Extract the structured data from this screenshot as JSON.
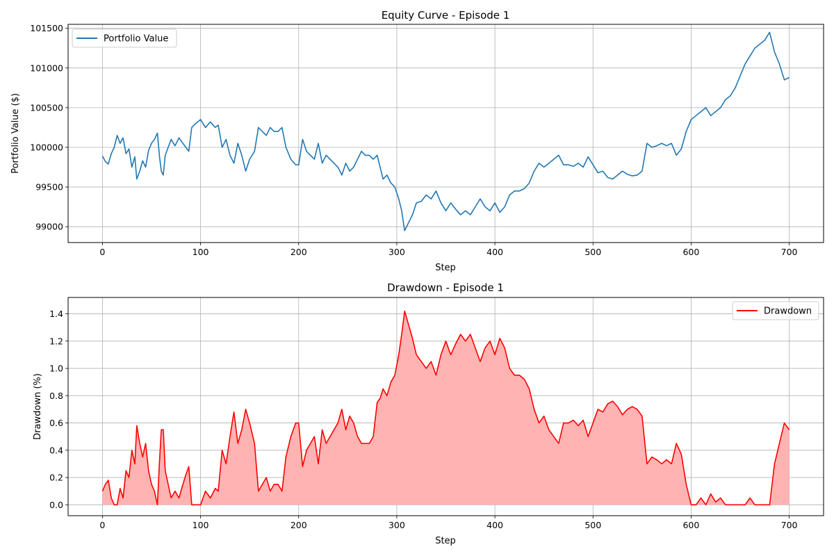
{
  "chart_data": [
    {
      "type": "line",
      "title": "Equity Curve - Episode 1",
      "xlabel": "Step",
      "ylabel": "Portfolio Value ($)",
      "xlim": [
        -35,
        735
      ],
      "ylim": [
        98800,
        101550
      ],
      "x_ticks": [
        0,
        100,
        200,
        300,
        400,
        500,
        600,
        700
      ],
      "y_ticks": [
        99000,
        99500,
        100000,
        100500,
        101000,
        101500
      ],
      "grid": true,
      "legend": "upper left",
      "series": [
        {
          "name": "Portfolio Value",
          "color": "#1f77b4",
          "x": [
            0,
            3,
            6,
            9,
            12,
            15,
            18,
            21,
            24,
            27,
            30,
            33,
            35,
            38,
            41,
            44,
            47,
            50,
            53,
            56,
            58,
            60,
            62,
            64,
            67,
            70,
            74,
            78,
            82,
            85,
            88,
            91,
            95,
            100,
            105,
            110,
            115,
            118,
            122,
            126,
            130,
            134,
            138,
            142,
            146,
            150,
            155,
            159,
            163,
            167,
            171,
            175,
            179,
            183,
            187,
            192,
            197,
            200,
            204,
            208,
            212,
            216,
            220,
            224,
            228,
            232,
            236,
            240,
            244,
            248,
            252,
            256,
            260,
            264,
            268,
            272,
            276,
            280,
            283,
            286,
            290,
            294,
            298,
            302,
            305,
            308,
            312,
            316,
            320,
            325,
            330,
            335,
            340,
            345,
            350,
            355,
            360,
            365,
            370,
            375,
            380,
            385,
            390,
            395,
            400,
            405,
            410,
            415,
            420,
            425,
            430,
            435,
            440,
            445,
            450,
            455,
            460,
            465,
            470,
            475,
            480,
            485,
            490,
            495,
            500,
            505,
            510,
            515,
            520,
            525,
            530,
            535,
            540,
            545,
            550,
            555,
            560,
            565,
            570,
            575,
            580,
            585,
            590,
            595,
            600,
            605,
            610,
            615,
            620,
            625,
            630,
            635,
            640,
            645,
            650,
            655,
            660,
            665,
            670,
            675,
            680,
            685,
            690,
            695,
            700
          ],
          "values": [
            99890,
            99820,
            99790,
            99920,
            100000,
            100150,
            100050,
            100120,
            99920,
            99980,
            99750,
            99880,
            99600,
            99700,
            99830,
            99750,
            99960,
            100050,
            100100,
            100180,
            99900,
            99700,
            99650,
            99900,
            100000,
            100100,
            100020,
            100120,
            100050,
            100000,
            99950,
            100250,
            100300,
            100350,
            100250,
            100320,
            100250,
            100280,
            100000,
            100100,
            99900,
            99800,
            100050,
            99900,
            99700,
            99850,
            99950,
            100250,
            100200,
            100150,
            100250,
            100200,
            100200,
            100250,
            100000,
            99850,
            99780,
            99780,
            100100,
            99950,
            99900,
            99850,
            100050,
            99800,
            99900,
            99850,
            99800,
            99750,
            99650,
            99800,
            99700,
            99750,
            99850,
            99950,
            99900,
            99900,
            99850,
            99900,
            99750,
            99600,
            99650,
            99550,
            99500,
            99350,
            99200,
            98950,
            99050,
            99150,
            99300,
            99320,
            99400,
            99350,
            99450,
            99300,
            99200,
            99300,
            99220,
            99150,
            99200,
            99150,
            99250,
            99350,
            99250,
            99200,
            99300,
            99180,
            99250,
            99400,
            99450,
            99450,
            99480,
            99550,
            99700,
            99800,
            99750,
            99800,
            99850,
            99900,
            99780,
            99780,
            99760,
            99800,
            99750,
            99880,
            99780,
            99680,
            99700,
            99620,
            99600,
            99650,
            99700,
            99660,
            99640,
            99650,
            99700,
            100050,
            100000,
            100020,
            100050,
            100020,
            100050,
            99900,
            99980,
            100200,
            100350,
            100400,
            100450,
            100500,
            100400,
            100450,
            100500,
            100600,
            100650,
            100750,
            100900,
            101050,
            101150,
            101250,
            101300,
            101350,
            101450,
            101200,
            101050,
            100850,
            100880
          ]
        }
      ]
    },
    {
      "type": "area",
      "title": "Drawdown - Episode 1",
      "xlabel": "Step",
      "ylabel": "Drawdown (%)",
      "xlim": [
        -35,
        735
      ],
      "ylim": [
        -0.08,
        1.52
      ],
      "x_ticks": [
        0,
        100,
        200,
        300,
        400,
        500,
        600,
        700
      ],
      "y_ticks": [
        0.0,
        0.2,
        0.4,
        0.6,
        0.8,
        1.0,
        1.2,
        1.4
      ],
      "grid": true,
      "legend": "upper right",
      "series": [
        {
          "name": "Drawdown",
          "color": "#ff0000",
          "fill_color": "#ffb3b3",
          "x": [
            0,
            3,
            6,
            9,
            12,
            15,
            18,
            21,
            24,
            27,
            30,
            33,
            35,
            38,
            41,
            44,
            47,
            50,
            53,
            56,
            58,
            60,
            62,
            64,
            67,
            70,
            74,
            78,
            82,
            85,
            88,
            91,
            95,
            100,
            105,
            110,
            115,
            118,
            122,
            126,
            130,
            134,
            138,
            142,
            146,
            150,
            155,
            159,
            163,
            167,
            171,
            175,
            179,
            183,
            187,
            192,
            197,
            200,
            204,
            208,
            212,
            216,
            220,
            224,
            228,
            232,
            236,
            240,
            244,
            248,
            252,
            256,
            260,
            264,
            268,
            272,
            276,
            280,
            283,
            286,
            290,
            294,
            298,
            302,
            305,
            308,
            312,
            316,
            320,
            325,
            330,
            335,
            340,
            345,
            350,
            355,
            360,
            365,
            370,
            375,
            380,
            385,
            390,
            395,
            400,
            405,
            410,
            415,
            420,
            425,
            430,
            435,
            440,
            445,
            450,
            455,
            460,
            465,
            470,
            475,
            480,
            485,
            490,
            495,
            500,
            505,
            510,
            515,
            520,
            525,
            530,
            535,
            540,
            545,
            550,
            555,
            560,
            565,
            570,
            575,
            580,
            585,
            590,
            595,
            600,
            605,
            610,
            615,
            620,
            625,
            630,
            635,
            640,
            645,
            650,
            655,
            660,
            665,
            670,
            675,
            680,
            685,
            690,
            695,
            700
          ],
          "values": [
            0.1,
            0.15,
            0.18,
            0.05,
            0.0,
            0.0,
            0.12,
            0.05,
            0.25,
            0.2,
            0.4,
            0.3,
            0.58,
            0.45,
            0.35,
            0.45,
            0.25,
            0.15,
            0.1,
            0.0,
            0.3,
            0.55,
            0.55,
            0.25,
            0.15,
            0.05,
            0.1,
            0.05,
            0.15,
            0.22,
            0.28,
            0.0,
            0.0,
            0.0,
            0.1,
            0.05,
            0.12,
            0.1,
            0.4,
            0.3,
            0.5,
            0.68,
            0.45,
            0.55,
            0.7,
            0.6,
            0.45,
            0.1,
            0.15,
            0.2,
            0.1,
            0.15,
            0.15,
            0.1,
            0.35,
            0.5,
            0.6,
            0.6,
            0.28,
            0.4,
            0.45,
            0.5,
            0.3,
            0.55,
            0.45,
            0.5,
            0.55,
            0.6,
            0.7,
            0.55,
            0.65,
            0.6,
            0.5,
            0.45,
            0.45,
            0.45,
            0.5,
            0.75,
            0.78,
            0.85,
            0.8,
            0.9,
            0.95,
            1.1,
            1.25,
            1.42,
            1.32,
            1.22,
            1.1,
            1.05,
            1.0,
            1.05,
            0.95,
            1.1,
            1.2,
            1.1,
            1.18,
            1.25,
            1.2,
            1.25,
            1.15,
            1.05,
            1.15,
            1.2,
            1.1,
            1.22,
            1.15,
            1.0,
            0.95,
            0.95,
            0.92,
            0.85,
            0.7,
            0.6,
            0.65,
            0.55,
            0.5,
            0.45,
            0.6,
            0.6,
            0.62,
            0.58,
            0.62,
            0.5,
            0.6,
            0.7,
            0.68,
            0.74,
            0.76,
            0.72,
            0.66,
            0.7,
            0.72,
            0.7,
            0.65,
            0.3,
            0.35,
            0.33,
            0.3,
            0.33,
            0.3,
            0.45,
            0.37,
            0.15,
            0.0,
            0.0,
            0.05,
            0.0,
            0.08,
            0.02,
            0.05,
            0.0,
            0.0,
            0.0,
            0.0,
            0.0,
            0.05,
            0.0,
            0.0,
            0.0,
            0.0,
            0.3,
            0.45,
            0.6,
            0.55
          ]
        }
      ]
    }
  ]
}
